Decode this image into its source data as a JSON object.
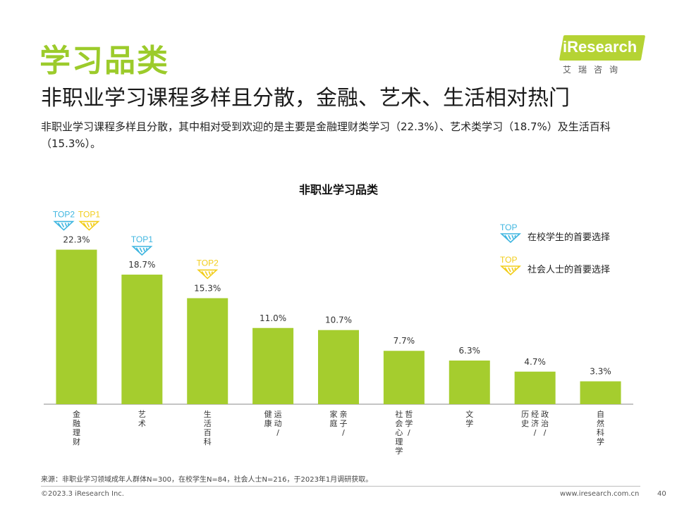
{
  "header": {
    "section_title": "学习品类",
    "headline": "非职业学习课程多样且分散，金融、艺术、生活相对热门",
    "summary": "非职业学习课程多样且分散，其中相对受到欢迎的是主要是金融理财类学习（22.3%）、艺术类学习（18.7%）及生活百科（15.3%）。"
  },
  "logo": {
    "text": "iResearch",
    "subtitle": "艾瑞咨询"
  },
  "colors": {
    "bar": "#a5cd2e",
    "accent_green": "#9ccb2b",
    "top_blue": "#3fb6e0",
    "top_yellow": "#f2cd1a"
  },
  "legend": [
    {
      "badge": "TOP",
      "label": "在校学生的首要选择",
      "color": "#3fb6e0"
    },
    {
      "badge": "TOP",
      "label": "社会人士的首要选择",
      "color": "#f2cd1a"
    }
  ],
  "chart_data": {
    "type": "bar",
    "title": "非职业学习品类",
    "categories": [
      "金融理财",
      "艺术",
      "生活百科",
      "运动/健康",
      "亲子/家庭",
      "哲学/社会心理学",
      "文学",
      "政治/经济/历史",
      "自然科学"
    ],
    "values": [
      22.3,
      18.7,
      15.3,
      11.0,
      10.7,
      7.7,
      6.3,
      4.7,
      3.3
    ],
    "value_labels": [
      "22.3%",
      "18.7%",
      "15.3%",
      "11.0%",
      "10.7%",
      "7.7%",
      "6.3%",
      "4.7%",
      "3.3%"
    ],
    "unit": "%",
    "ylim": [
      0,
      25
    ],
    "grid": false,
    "legend_position": "right",
    "badges": [
      {
        "category_index": 0,
        "label": "TOP2",
        "group": "在校学生",
        "color": "#3fb6e0"
      },
      {
        "category_index": 0,
        "label": "TOP1",
        "group": "社会人士",
        "color": "#f2cd1a"
      },
      {
        "category_index": 1,
        "label": "TOP1",
        "group": "在校学生",
        "color": "#3fb6e0"
      },
      {
        "category_index": 2,
        "label": "TOP2",
        "group": "社会人士",
        "color": "#f2cd1a"
      }
    ]
  },
  "footer": {
    "source": "来源：非职业学习领域成年人群体N=300，在校学生N=84，社会人士N=216，于2023年1月调研获取。",
    "copyright": "©2023.3 iResearch Inc.",
    "website": "www.iresearch.com.cn",
    "page_number": "40"
  }
}
